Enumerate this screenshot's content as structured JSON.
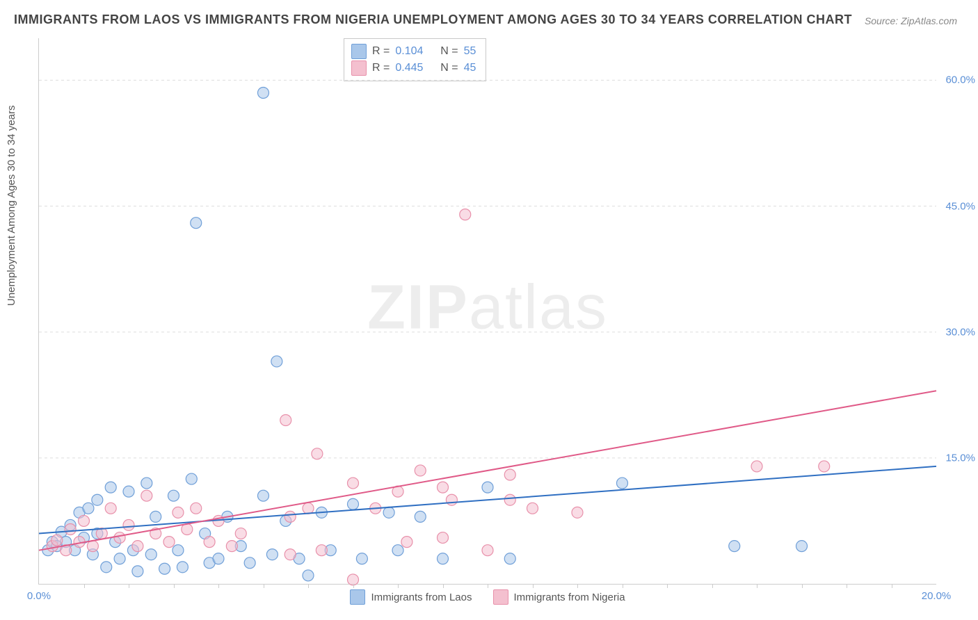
{
  "title": "IMMIGRANTS FROM LAOS VS IMMIGRANTS FROM NIGERIA UNEMPLOYMENT AMONG AGES 30 TO 34 YEARS CORRELATION CHART",
  "source": "Source: ZipAtlas.com",
  "watermark_bold": "ZIP",
  "watermark_rest": "atlas",
  "ylabel": "Unemployment Among Ages 30 to 34 years",
  "chart": {
    "type": "scatter",
    "background_color": "#ffffff",
    "grid_color": "#dddddd",
    "axis_color": "#cccccc",
    "tick_label_color": "#5a8fd6",
    "xlim": [
      0,
      20
    ],
    "ylim": [
      0,
      65
    ],
    "x_ticks": [
      0,
      20
    ],
    "x_tick_labels": [
      "0.0%",
      "20.0%"
    ],
    "y_ticks": [
      15,
      30,
      45,
      60
    ],
    "y_tick_labels": [
      "15.0%",
      "30.0%",
      "45.0%",
      "60.0%"
    ],
    "marker_radius": 8,
    "marker_opacity": 0.55,
    "line_width": 2
  },
  "series": [
    {
      "id": "laos",
      "label": "Immigrants from Laos",
      "fill": "#a9c7ea",
      "stroke": "#6f9fd8",
      "line_color": "#2f6fc2",
      "R": "0.104",
      "N": "55",
      "regression": {
        "x1": 0,
        "y1": 6.0,
        "x2": 20,
        "y2": 14.0
      },
      "points": [
        [
          0.2,
          4.0
        ],
        [
          0.3,
          5.0
        ],
        [
          0.4,
          4.5
        ],
        [
          0.5,
          6.2
        ],
        [
          0.6,
          5.0
        ],
        [
          0.7,
          7.0
        ],
        [
          0.8,
          4.0
        ],
        [
          0.9,
          8.5
        ],
        [
          1.0,
          5.5
        ],
        [
          1.1,
          9.0
        ],
        [
          1.2,
          3.5
        ],
        [
          1.3,
          10.0
        ],
        [
          1.3,
          6.0
        ],
        [
          1.5,
          2.0
        ],
        [
          1.6,
          11.5
        ],
        [
          1.7,
          5.0
        ],
        [
          1.8,
          3.0
        ],
        [
          2.0,
          11.0
        ],
        [
          2.1,
          4.0
        ],
        [
          2.2,
          1.5
        ],
        [
          2.4,
          12.0
        ],
        [
          2.5,
          3.5
        ],
        [
          2.6,
          8.0
        ],
        [
          2.8,
          1.8
        ],
        [
          3.0,
          10.5
        ],
        [
          3.1,
          4.0
        ],
        [
          3.2,
          2.0
        ],
        [
          3.4,
          12.5
        ],
        [
          3.5,
          43.0
        ],
        [
          3.7,
          6.0
        ],
        [
          3.8,
          2.5
        ],
        [
          4.0,
          3.0
        ],
        [
          4.2,
          8.0
        ],
        [
          4.5,
          4.5
        ],
        [
          4.7,
          2.5
        ],
        [
          5.0,
          10.5
        ],
        [
          5.0,
          58.5
        ],
        [
          5.2,
          3.5
        ],
        [
          5.3,
          26.5
        ],
        [
          5.5,
          7.5
        ],
        [
          5.8,
          3.0
        ],
        [
          6.0,
          1.0
        ],
        [
          6.3,
          8.5
        ],
        [
          6.5,
          4.0
        ],
        [
          7.0,
          9.5
        ],
        [
          7.2,
          3.0
        ],
        [
          7.8,
          8.5
        ],
        [
          8.0,
          4.0
        ],
        [
          8.5,
          8.0
        ],
        [
          9.0,
          3.0
        ],
        [
          10.0,
          11.5
        ],
        [
          10.5,
          3.0
        ],
        [
          13.0,
          12.0
        ],
        [
          15.5,
          4.5
        ],
        [
          17.0,
          4.5
        ]
      ]
    },
    {
      "id": "nigeria",
      "label": "Immigrants from Nigeria",
      "fill": "#f4c0cf",
      "stroke": "#e890aa",
      "line_color": "#e05a88",
      "R": "0.445",
      "N": "45",
      "regression": {
        "x1": 0,
        "y1": 4.0,
        "x2": 20,
        "y2": 23.0
      },
      "points": [
        [
          0.3,
          4.5
        ],
        [
          0.4,
          5.2
        ],
        [
          0.6,
          4.0
        ],
        [
          0.7,
          6.5
        ],
        [
          0.9,
          5.0
        ],
        [
          1.0,
          7.5
        ],
        [
          1.2,
          4.5
        ],
        [
          1.4,
          6.0
        ],
        [
          1.6,
          9.0
        ],
        [
          1.8,
          5.5
        ],
        [
          2.0,
          7.0
        ],
        [
          2.2,
          4.5
        ],
        [
          2.4,
          10.5
        ],
        [
          2.6,
          6.0
        ],
        [
          2.9,
          5.0
        ],
        [
          3.1,
          8.5
        ],
        [
          3.3,
          6.5
        ],
        [
          3.5,
          9.0
        ],
        [
          3.8,
          5.0
        ],
        [
          4.0,
          7.5
        ],
        [
          4.3,
          4.5
        ],
        [
          4.5,
          6.0
        ],
        [
          5.5,
          19.5
        ],
        [
          5.6,
          3.5
        ],
        [
          5.6,
          8.0
        ],
        [
          6.0,
          9.0
        ],
        [
          6.2,
          15.5
        ],
        [
          6.3,
          4.0
        ],
        [
          7.0,
          12.0
        ],
        [
          7.0,
          0.5
        ],
        [
          7.5,
          9.0
        ],
        [
          8.0,
          11.0
        ],
        [
          8.2,
          5.0
        ],
        [
          8.5,
          13.5
        ],
        [
          9.0,
          11.5
        ],
        [
          9.0,
          5.5
        ],
        [
          9.2,
          10.0
        ],
        [
          9.5,
          44.0
        ],
        [
          10.0,
          4.0
        ],
        [
          10.5,
          13.0
        ],
        [
          10.5,
          10.0
        ],
        [
          11.0,
          9.0
        ],
        [
          12.0,
          8.5
        ],
        [
          16.0,
          14.0
        ],
        [
          17.5,
          14.0
        ]
      ]
    }
  ],
  "legend_top": {
    "r_label": "R  =",
    "n_label": "N  ="
  }
}
